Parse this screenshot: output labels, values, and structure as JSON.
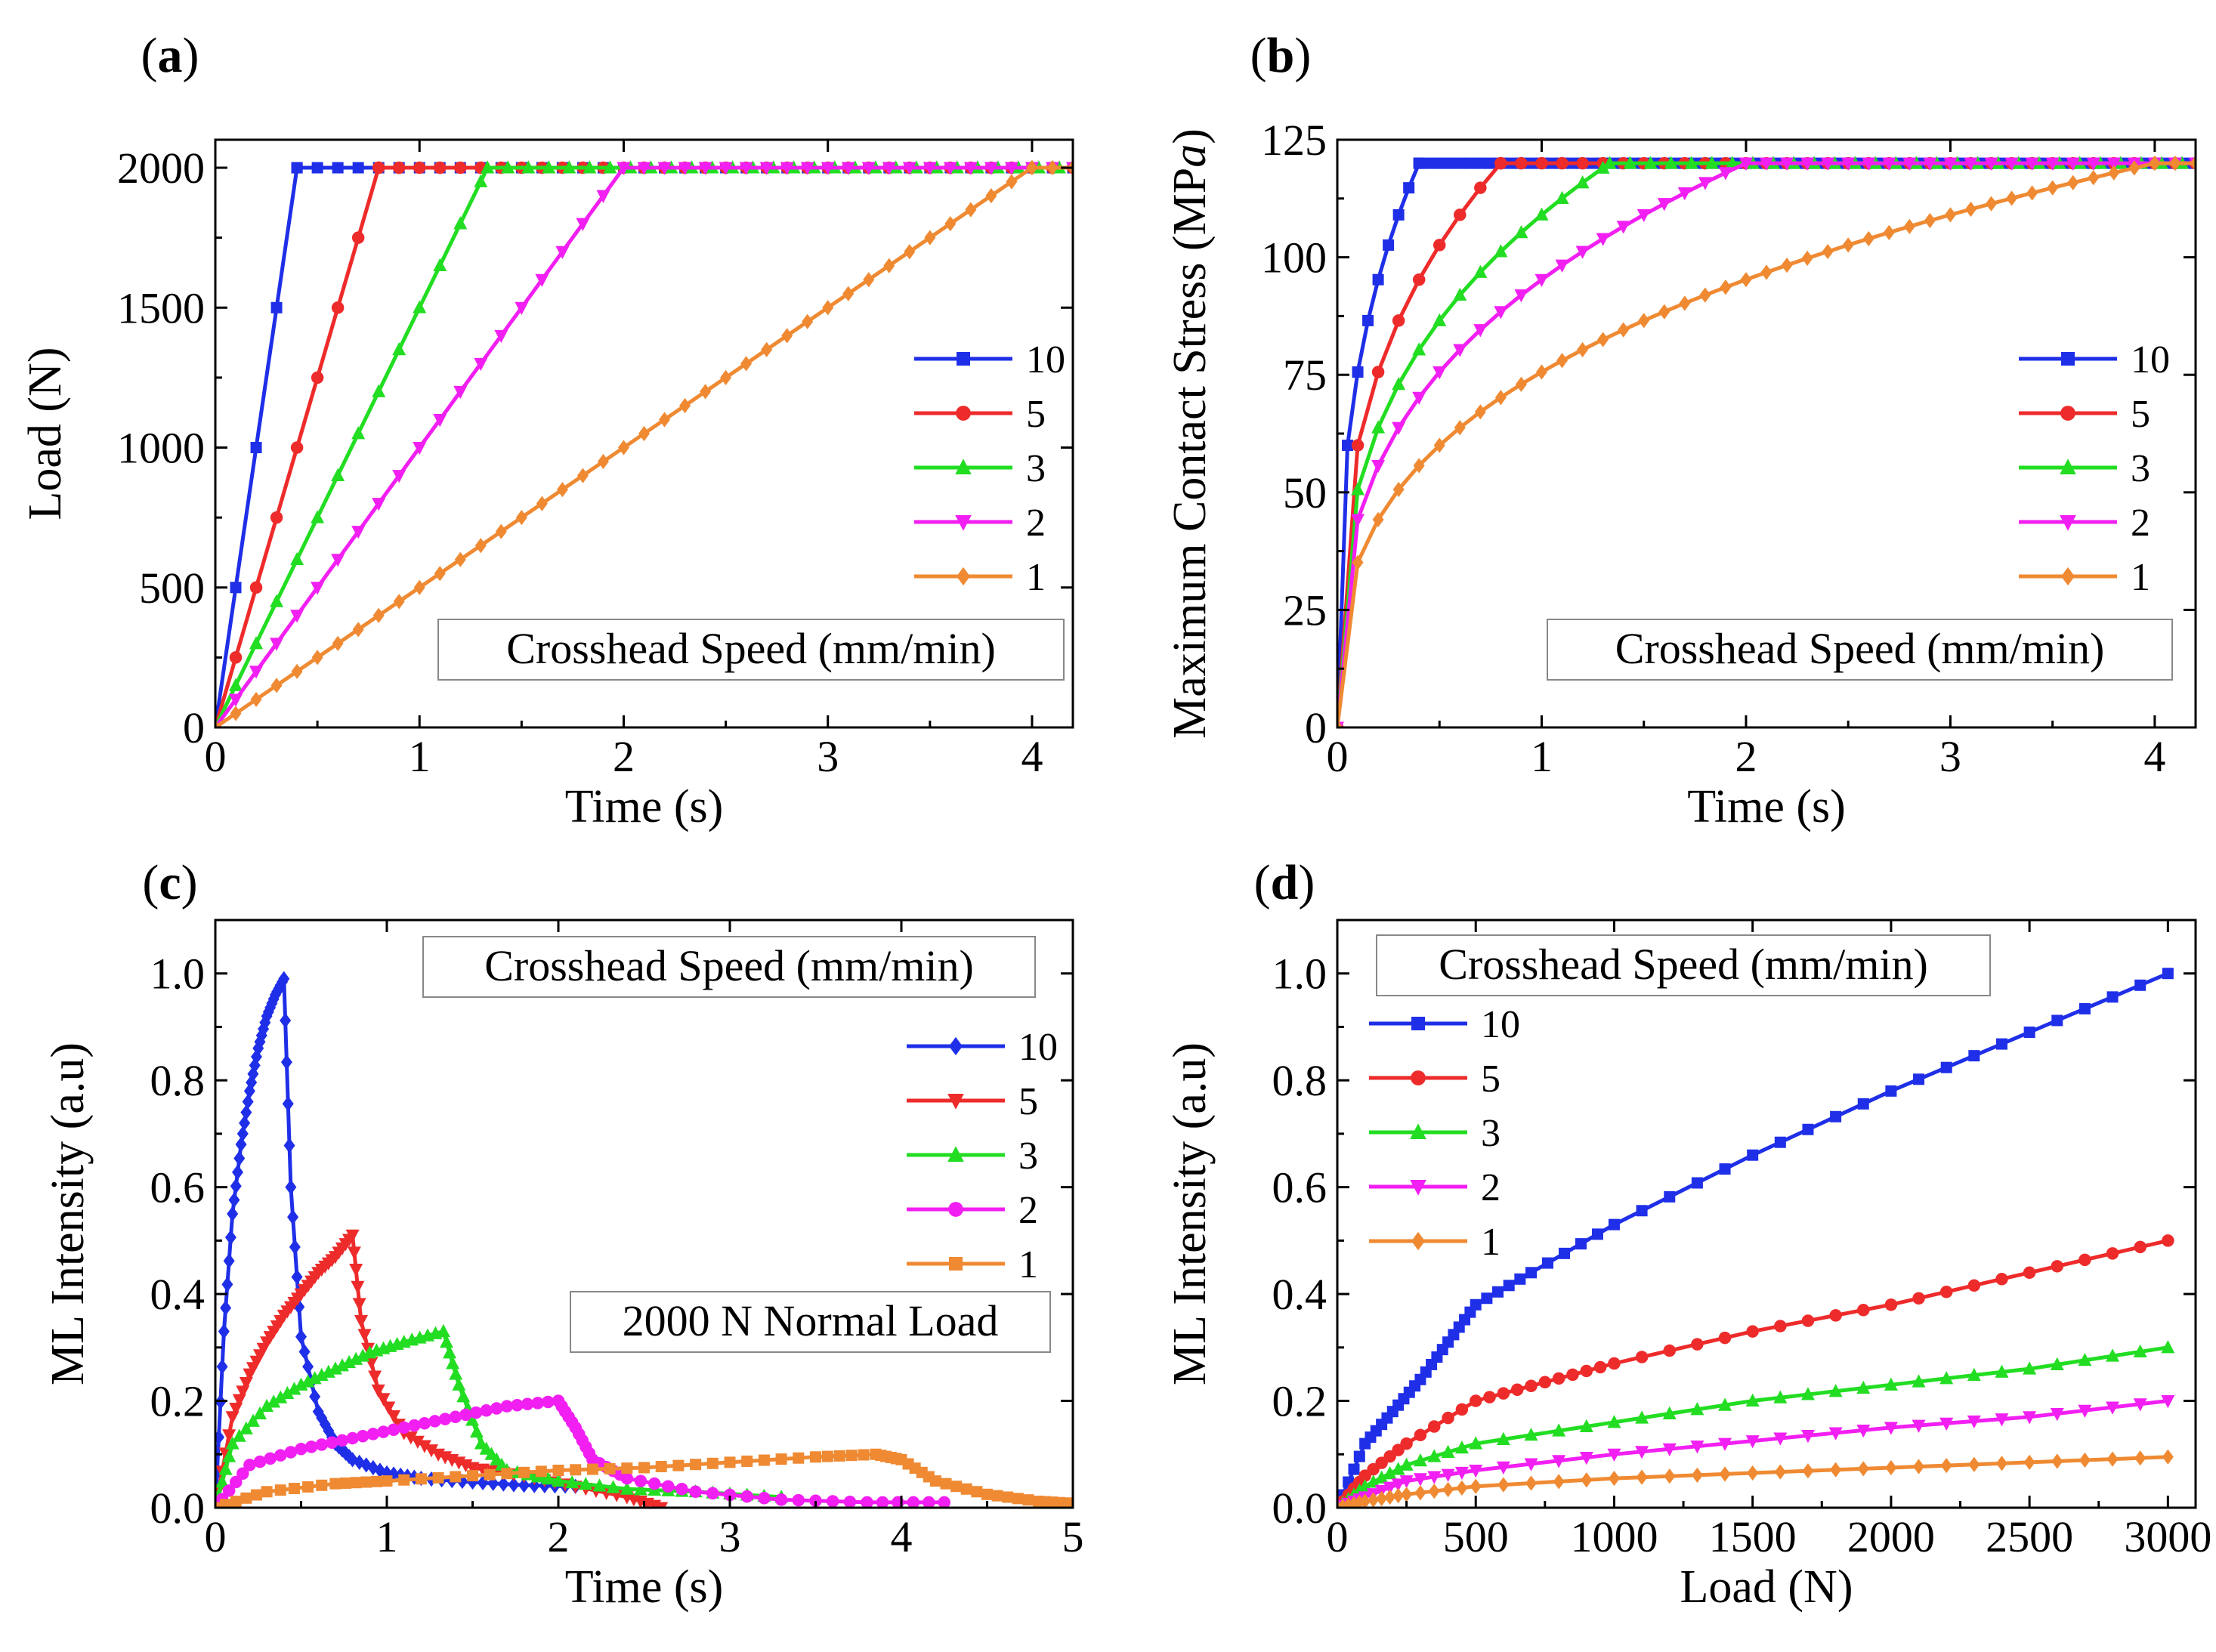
{
  "figure": {
    "panels": [
      "a",
      "b",
      "c",
      "d"
    ]
  },
  "chart_data": [
    {
      "id": "a",
      "type": "line",
      "panel_label": "a",
      "title": "",
      "xlabel": "Time (s)",
      "ylabel": "Load (N)",
      "xlim": [
        0,
        4.2
      ],
      "ylim": [
        0,
        2100
      ],
      "xticks": [
        0,
        1,
        2,
        3,
        4
      ],
      "yticks": [
        0,
        500,
        1000,
        1500,
        2000
      ],
      "legend_title": "Crosshead Speed (mm/min)",
      "legend_position": "right",
      "series": [
        {
          "name": "10",
          "color": "#1f2fe8",
          "marker": "square",
          "ramp_end": 0.4,
          "peak": 2000,
          "x_end": 4.2,
          "shape": "linear",
          "step": 0.1
        },
        {
          "name": "5",
          "color": "#ee2b2b",
          "marker": "circle",
          "ramp_end": 0.8,
          "peak": 2000,
          "x_end": 4.2,
          "shape": "linear",
          "step": 0.1
        },
        {
          "name": "3",
          "color": "#22dd22",
          "marker": "triangle-up",
          "ramp_end": 1.333,
          "peak": 2000,
          "x_end": 4.2,
          "shape": "linear",
          "step": 0.1
        },
        {
          "name": "2",
          "color": "#f21ff2",
          "marker": "triangle-down",
          "ramp_end": 2.0,
          "peak": 2000,
          "x_end": 4.2,
          "shape": "linear",
          "step": 0.1
        },
        {
          "name": "1",
          "color": "#ef8a33",
          "marker": "diamond",
          "ramp_end": 4.0,
          "peak": 2000,
          "x_end": 4.2,
          "shape": "linear",
          "step": 0.1
        }
      ]
    },
    {
      "id": "b",
      "type": "line",
      "panel_label": "b",
      "title": "",
      "xlabel": "Time (s)",
      "ylabel": "Maximum Contact Stress (MPa)",
      "xlim": [
        0,
        4.2
      ],
      "ylim": [
        0,
        125
      ],
      "xticks": [
        0,
        1,
        2,
        3,
        4
      ],
      "yticks": [
        0,
        25,
        50,
        75,
        100,
        125
      ],
      "legend_title": "Crosshead Speed (mm/min)",
      "legend_position": "right",
      "series": [
        {
          "name": "10",
          "color": "#1f2fe8",
          "marker": "square",
          "ramp_end": 0.4,
          "peak": 120,
          "x_end": 4.2,
          "shape": "cuberoot",
          "step": 0.05
        },
        {
          "name": "5",
          "color": "#ee2b2b",
          "marker": "circle",
          "ramp_end": 0.8,
          "peak": 120,
          "x_end": 4.2,
          "shape": "cuberoot",
          "step": 0.1
        },
        {
          "name": "3",
          "color": "#22dd22",
          "marker": "triangle-up",
          "ramp_end": 1.333,
          "peak": 120,
          "x_end": 4.2,
          "shape": "cuberoot",
          "step": 0.1
        },
        {
          "name": "2",
          "color": "#f21ff2",
          "marker": "triangle-down",
          "ramp_end": 2.0,
          "peak": 120,
          "x_end": 4.2,
          "shape": "cuberoot",
          "step": 0.1
        },
        {
          "name": "1",
          "color": "#ef8a33",
          "marker": "diamond",
          "ramp_end": 4.0,
          "peak": 120,
          "x_end": 4.2,
          "shape": "cuberoot",
          "step": 0.1
        }
      ]
    },
    {
      "id": "c",
      "type": "line",
      "panel_label": "c",
      "title": "",
      "xlabel": "Time (s)",
      "ylabel": "ML Intensity  (a.u)",
      "xlim": [
        0,
        5
      ],
      "ylim": [
        0,
        1.1
      ],
      "xticks": [
        0,
        1,
        2,
        3,
        4,
        5
      ],
      "yticks": [
        0.0,
        0.2,
        0.4,
        0.6,
        0.8,
        1.0
      ],
      "legend_title": "Crosshead Speed (mm/min)",
      "annotation": "2000 N Normal Load",
      "legend_position": "right",
      "series": [
        {
          "name": "10",
          "color": "#1f2fe8",
          "marker": "diamond",
          "points": [
            [
              0,
              0
            ],
            [
              0.05,
              0.33
            ],
            [
              0.1,
              0.55
            ],
            [
              0.15,
              0.68
            ],
            [
              0.2,
              0.78
            ],
            [
              0.25,
              0.86
            ],
            [
              0.3,
              0.92
            ],
            [
              0.35,
              0.96
            ],
            [
              0.4,
              0.99
            ],
            [
              0.44,
              0.6
            ],
            [
              0.5,
              0.32
            ],
            [
              0.6,
              0.18
            ],
            [
              0.7,
              0.12
            ],
            [
              0.8,
              0.09
            ],
            [
              1.0,
              0.065
            ],
            [
              1.2,
              0.055
            ],
            [
              1.5,
              0.048
            ],
            [
              1.8,
              0.042
            ],
            [
              2.1,
              0.04
            ]
          ]
        },
        {
          "name": "5",
          "color": "#ee2b2b",
          "marker": "triangle-down",
          "points": [
            [
              0,
              0
            ],
            [
              0.1,
              0.17
            ],
            [
              0.2,
              0.25
            ],
            [
              0.3,
              0.31
            ],
            [
              0.4,
              0.36
            ],
            [
              0.5,
              0.4
            ],
            [
              0.6,
              0.44
            ],
            [
              0.7,
              0.47
            ],
            [
              0.8,
              0.51
            ],
            [
              0.85,
              0.35
            ],
            [
              0.95,
              0.22
            ],
            [
              1.1,
              0.14
            ],
            [
              1.3,
              0.1
            ],
            [
              1.5,
              0.075
            ],
            [
              1.8,
              0.06
            ],
            [
              2.1,
              0.04
            ],
            [
              2.4,
              0.02
            ],
            [
              2.6,
              0.0
            ]
          ]
        },
        {
          "name": "3",
          "color": "#22dd22",
          "marker": "triangle-up",
          "points": [
            [
              0,
              0
            ],
            [
              0.1,
              0.12
            ],
            [
              0.3,
              0.19
            ],
            [
              0.5,
              0.23
            ],
            [
              0.7,
              0.26
            ],
            [
              0.9,
              0.29
            ],
            [
              1.1,
              0.31
            ],
            [
              1.33,
              0.33
            ],
            [
              1.42,
              0.23
            ],
            [
              1.55,
              0.12
            ],
            [
              1.7,
              0.07
            ],
            [
              2.0,
              0.05
            ],
            [
              2.4,
              0.035
            ],
            [
              2.8,
              0.03
            ],
            [
              3.3,
              0.02
            ]
          ]
        },
        {
          "name": "2",
          "color": "#f21ff2",
          "marker": "circle",
          "points": [
            [
              0,
              0
            ],
            [
              0.2,
              0.08
            ],
            [
              0.5,
              0.11
            ],
            [
              0.8,
              0.13
            ],
            [
              1.1,
              0.15
            ],
            [
              1.4,
              0.17
            ],
            [
              1.7,
              0.19
            ],
            [
              2.0,
              0.2
            ],
            [
              2.1,
              0.15
            ],
            [
              2.2,
              0.09
            ],
            [
              2.4,
              0.055
            ],
            [
              2.8,
              0.03
            ],
            [
              3.3,
              0.015
            ],
            [
              3.8,
              0.01
            ],
            [
              4.25,
              0.01
            ]
          ]
        },
        {
          "name": "1",
          "color": "#ef8a33",
          "marker": "square",
          "points": [
            [
              0,
              0
            ],
            [
              0.3,
              0.03
            ],
            [
              0.7,
              0.045
            ],
            [
              1.0,
              0.05
            ],
            [
              1.5,
              0.06
            ],
            [
              2.0,
              0.07
            ],
            [
              2.5,
              0.075
            ],
            [
              3.0,
              0.085
            ],
            [
              3.5,
              0.095
            ],
            [
              3.85,
              0.1
            ],
            [
              4.0,
              0.09
            ],
            [
              4.2,
              0.05
            ],
            [
              4.5,
              0.025
            ],
            [
              4.8,
              0.012
            ],
            [
              5.0,
              0.008
            ]
          ]
        }
      ]
    },
    {
      "id": "d",
      "type": "line",
      "panel_label": "d",
      "title": "",
      "xlabel": "Load (N)",
      "ylabel": "ML Intensity  (a.u)",
      "xlim": [
        0,
        3100
      ],
      "ylim": [
        0,
        1.1
      ],
      "xticks": [
        0,
        500,
        1000,
        1500,
        2000,
        2500,
        3000
      ],
      "yticks": [
        0.0,
        0.2,
        0.4,
        0.6,
        0.8,
        1.0
      ],
      "legend_title": "Crosshead Speed (mm/min)",
      "legend_position": "left",
      "series": [
        {
          "name": "10",
          "color": "#1f2fe8",
          "marker": "square",
          "points": [
            [
              0,
              0
            ],
            [
              100,
              0.12
            ],
            [
              200,
              0.18
            ],
            [
              300,
              0.24
            ],
            [
              400,
              0.31
            ],
            [
              500,
              0.38
            ],
            [
              700,
              0.44
            ],
            [
              1000,
              0.53
            ],
            [
              1500,
              0.66
            ],
            [
              2000,
              0.78
            ],
            [
              2500,
              0.89
            ],
            [
              3000,
              1.0
            ]
          ]
        },
        {
          "name": "5",
          "color": "#ee2b2b",
          "marker": "circle",
          "points": [
            [
              0,
              0
            ],
            [
              100,
              0.06
            ],
            [
              250,
              0.12
            ],
            [
              500,
              0.2
            ],
            [
              750,
              0.235
            ],
            [
              1000,
              0.27
            ],
            [
              1500,
              0.33
            ],
            [
              2000,
              0.38
            ],
            [
              2500,
              0.44
            ],
            [
              3000,
              0.5
            ]
          ]
        },
        {
          "name": "3",
          "color": "#22dd22",
          "marker": "triangle-up",
          "points": [
            [
              0,
              0
            ],
            [
              100,
              0.04
            ],
            [
              250,
              0.08
            ],
            [
              500,
              0.12
            ],
            [
              1000,
              0.16
            ],
            [
              1500,
              0.2
            ],
            [
              2000,
              0.23
            ],
            [
              2500,
              0.26
            ],
            [
              3000,
              0.3
            ]
          ]
        },
        {
          "name": "2",
          "color": "#f21ff2",
          "marker": "triangle-down",
          "points": [
            [
              0,
              0
            ],
            [
              100,
              0.02
            ],
            [
              250,
              0.05
            ],
            [
              500,
              0.07
            ],
            [
              1000,
              0.1
            ],
            [
              1500,
              0.125
            ],
            [
              2000,
              0.15
            ],
            [
              2500,
              0.17
            ],
            [
              3000,
              0.2
            ]
          ]
        },
        {
          "name": "1",
          "color": "#ef8a33",
          "marker": "diamond",
          "points": [
            [
              0,
              0
            ],
            [
              100,
              0.012
            ],
            [
              250,
              0.025
            ],
            [
              500,
              0.04
            ],
            [
              1000,
              0.055
            ],
            [
              1500,
              0.065
            ],
            [
              2000,
              0.075
            ],
            [
              2500,
              0.085
            ],
            [
              3000,
              0.095
            ]
          ]
        }
      ]
    }
  ]
}
